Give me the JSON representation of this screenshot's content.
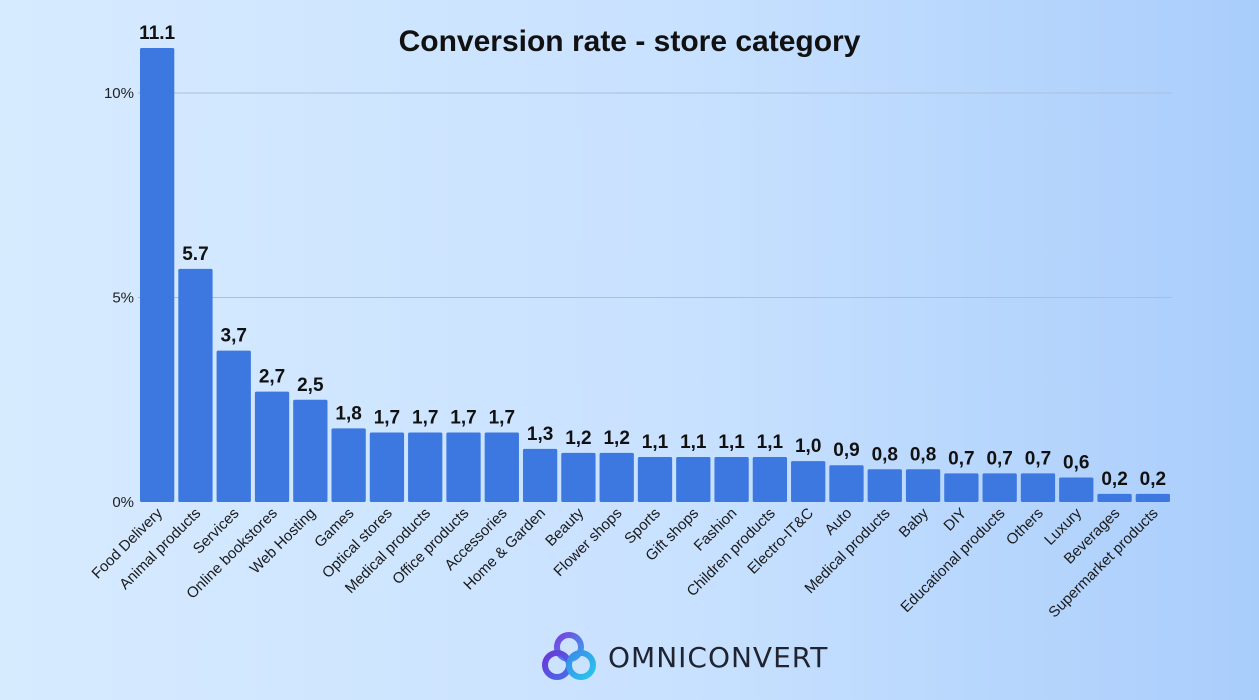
{
  "chart_data": {
    "type": "bar",
    "title": "Conversion rate - store category",
    "xlabel": "",
    "ylabel": "",
    "ylim": [
      0,
      11.1
    ],
    "yticks": [
      {
        "value": 0,
        "label": "0%"
      },
      {
        "value": 5,
        "label": "5%"
      },
      {
        "value": 10,
        "label": "10%"
      }
    ],
    "grid": true,
    "bar_color": "#3d78e0",
    "categories": [
      "Food Delivery",
      "Animal products",
      "Services",
      "Online bookstores",
      "Web Hosting",
      "Games",
      "Optical stores",
      "Medical products",
      "Office products",
      "Accessories",
      "Home & Garden",
      "Beauty",
      "Flower shops",
      "Sports",
      "Gift shops",
      "Fashion",
      "Children products",
      "Electro-IT&C",
      "Auto",
      "Medical products",
      "Baby",
      "DIY",
      "Educational products",
      "Others",
      "Luxury",
      "Beverages",
      "Supermarket products"
    ],
    "values": [
      11.1,
      5.7,
      3.7,
      2.7,
      2.5,
      1.8,
      1.7,
      1.7,
      1.7,
      1.7,
      1.3,
      1.2,
      1.2,
      1.1,
      1.1,
      1.1,
      1.1,
      1.0,
      0.9,
      0.8,
      0.8,
      0.7,
      0.7,
      0.7,
      0.6,
      0.2,
      0.2
    ],
    "data_labels": [
      "11.1",
      "5.7",
      "3,7",
      "2,7",
      "2,5",
      "1,8",
      "1,7",
      "1,7",
      "1,7",
      "1,7",
      "1,3",
      "1,2",
      "1,2",
      "1,1",
      "1,1",
      "1,1",
      "1,1",
      "1,0",
      "0,9",
      "0,8",
      "0,8",
      "0,7",
      "0,7",
      "0,7",
      "0,6",
      "0,2",
      "0,2"
    ]
  },
  "brand": {
    "name": "OMNICONVERT",
    "logo_icon": "omniconvert-logo-icon",
    "logo_colors": [
      "#5b3fd6",
      "#3a7fe6",
      "#2ec4e8"
    ]
  }
}
